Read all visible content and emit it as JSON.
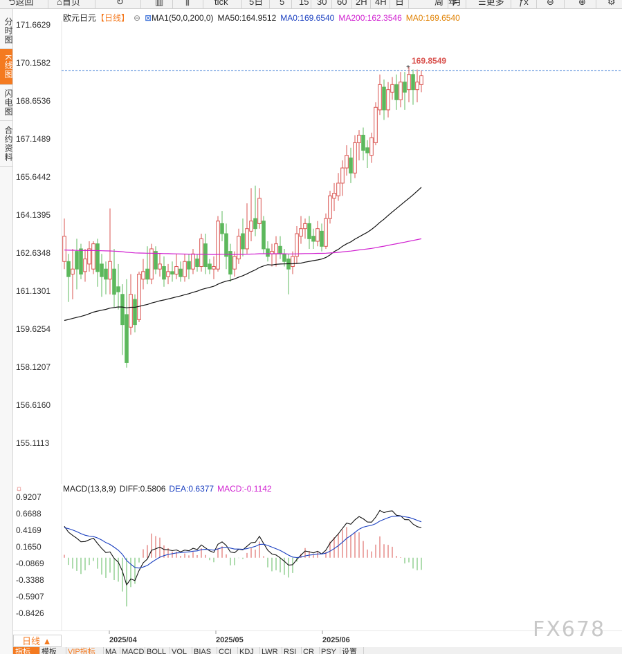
{
  "toolbar": {
    "back": "返回",
    "home": "首页",
    "tick": "tick",
    "day5": "5日",
    "p5": "5",
    "p15": "15",
    "p30": "30",
    "p60": "60",
    "p2h": "2H",
    "p4h": "4H",
    "day": "日",
    "week": "周",
    "month": "月",
    "year": "年",
    "more": "更多"
  },
  "side_tabs": [
    "分时图",
    "K线图",
    "闪电图",
    "合约资料"
  ],
  "legend": {
    "symbol": "欧元日元",
    "period": "【日线】",
    "ma_set": "MA1(50,0,200,0)",
    "ma50": "MA50:164.9512",
    "ma0a": "MA0:169.6540",
    "ma200": "MA200:162.3546",
    "ma0b": "MA0:169.6540"
  },
  "price_axis": [
    "171.6629",
    "170.1582",
    "168.6536",
    "167.1489",
    "165.6442",
    "164.1395",
    "162.6348",
    "161.1301",
    "159.6254",
    "158.1207",
    "156.6160",
    "155.1113"
  ],
  "last_price_label": "169.8549",
  "macd_legend": {
    "name": "MACD(13,8,9)",
    "diff": "DIFF:0.5806",
    "dea": "DEA:0.6377",
    "macd": "MACD:-0.1142"
  },
  "macd_axis": [
    "0.9207",
    "0.6688",
    "0.4169",
    "0.1650",
    "-0.0869",
    "-0.3388",
    "-0.5907",
    "-0.8426"
  ],
  "date_labels": [
    "2025/04",
    "2025/05",
    "2025/06"
  ],
  "day_selector": "日线 ▲",
  "bottom_tabs": [
    "指标",
    "模板",
    "VIP指标",
    "MA",
    "MACD",
    "BOLL",
    "VOL",
    "BIAS",
    "CCI",
    "KDJ",
    "LWR",
    "RSI",
    "CR",
    "PSY",
    "设置"
  ],
  "watermark": "FX678",
  "colors": {
    "up": "#d9534f",
    "down": "#5cb85c",
    "ma50": "#111111",
    "ma200": "#d020d0",
    "accent": "#f47a20"
  },
  "chart_data": {
    "type": "candlestick",
    "title": "欧元日元 日线",
    "ylim": [
      155.1113,
      171.6629
    ],
    "last_price": 169.8549,
    "candles": [
      {
        "o": 162.3,
        "c": 163.3,
        "h": 164.0,
        "l": 162.0
      },
      {
        "o": 162.3,
        "c": 161.7,
        "h": 162.6,
        "l": 160.7
      },
      {
        "o": 161.8,
        "c": 162.0,
        "h": 162.8,
        "l": 160.8
      },
      {
        "o": 162.7,
        "c": 162.0,
        "h": 163.2,
        "l": 161.2
      },
      {
        "o": 162.8,
        "c": 161.8,
        "h": 163.0,
        "l": 161.6
      },
      {
        "o": 161.9,
        "c": 162.4,
        "h": 162.8,
        "l": 161.5
      },
      {
        "o": 162.2,
        "c": 162.8,
        "h": 163.1,
        "l": 161.9
      },
      {
        "o": 162.0,
        "c": 163.0,
        "h": 163.1,
        "l": 161.8
      },
      {
        "o": 163.0,
        "c": 161.9,
        "h": 163.2,
        "l": 161.3
      },
      {
        "o": 162.2,
        "c": 161.7,
        "h": 162.6,
        "l": 160.9
      },
      {
        "o": 162.0,
        "c": 161.6,
        "h": 162.3,
        "l": 161.0
      },
      {
        "o": 161.6,
        "c": 162.3,
        "h": 164.4,
        "l": 161.0
      },
      {
        "o": 162.0,
        "c": 161.0,
        "h": 162.8,
        "l": 160.5
      },
      {
        "o": 161.3,
        "c": 161.1,
        "h": 162.2,
        "l": 160.4
      },
      {
        "o": 161.0,
        "c": 159.8,
        "h": 161.4,
        "l": 158.6
      },
      {
        "o": 160.2,
        "c": 158.3,
        "h": 161.6,
        "l": 158.1
      },
      {
        "o": 159.7,
        "c": 161.0,
        "h": 161.8,
        "l": 159.4
      },
      {
        "o": 160.8,
        "c": 159.8,
        "h": 161.0,
        "l": 159.5
      },
      {
        "o": 160.0,
        "c": 161.8,
        "h": 161.9,
        "l": 159.9
      },
      {
        "o": 161.6,
        "c": 161.9,
        "h": 162.4,
        "l": 161.2
      },
      {
        "o": 162.0,
        "c": 161.6,
        "h": 162.9,
        "l": 161.4
      },
      {
        "o": 161.6,
        "c": 162.8,
        "h": 163.0,
        "l": 161.4
      },
      {
        "o": 162.7,
        "c": 162.0,
        "h": 162.9,
        "l": 161.8
      },
      {
        "o": 162.0,
        "c": 162.2,
        "h": 162.6,
        "l": 161.7
      },
      {
        "o": 162.1,
        "c": 161.6,
        "h": 162.5,
        "l": 161.3
      },
      {
        "o": 161.7,
        "c": 161.9,
        "h": 162.2,
        "l": 161.4
      },
      {
        "o": 161.9,
        "c": 161.8,
        "h": 162.3,
        "l": 161.5
      },
      {
        "o": 161.8,
        "c": 162.1,
        "h": 162.6,
        "l": 161.6
      },
      {
        "o": 162.0,
        "c": 161.7,
        "h": 162.3,
        "l": 161.5
      },
      {
        "o": 161.7,
        "c": 162.3,
        "h": 162.6,
        "l": 161.5
      },
      {
        "o": 162.3,
        "c": 162.0,
        "h": 162.6,
        "l": 161.6
      },
      {
        "o": 162.0,
        "c": 162.6,
        "h": 162.8,
        "l": 161.8
      },
      {
        "o": 162.4,
        "c": 162.1,
        "h": 162.6,
        "l": 161.9
      },
      {
        "o": 162.1,
        "c": 163.2,
        "h": 163.4,
        "l": 161.9
      },
      {
        "o": 163.0,
        "c": 162.1,
        "h": 163.4,
        "l": 161.8
      },
      {
        "o": 162.2,
        "c": 162.0,
        "h": 162.4,
        "l": 161.8
      },
      {
        "o": 162.0,
        "c": 162.1,
        "h": 162.5,
        "l": 161.6
      },
      {
        "o": 162.0,
        "c": 163.9,
        "h": 164.1,
        "l": 161.9
      },
      {
        "o": 163.8,
        "c": 163.4,
        "h": 164.3,
        "l": 163.1
      },
      {
        "o": 163.4,
        "c": 162.5,
        "h": 163.8,
        "l": 162.0
      },
      {
        "o": 162.7,
        "c": 161.8,
        "h": 163.0,
        "l": 161.5
      },
      {
        "o": 162.0,
        "c": 162.5,
        "h": 162.7,
        "l": 161.7
      },
      {
        "o": 162.4,
        "c": 163.3,
        "h": 163.6,
        "l": 162.2
      },
      {
        "o": 163.4,
        "c": 162.8,
        "h": 164.0,
        "l": 162.5
      },
      {
        "o": 162.8,
        "c": 163.6,
        "h": 164.6,
        "l": 162.6
      },
      {
        "o": 163.5,
        "c": 163.9,
        "h": 165.2,
        "l": 163.1
      },
      {
        "o": 164.0,
        "c": 163.6,
        "h": 165.3,
        "l": 163.3
      },
      {
        "o": 163.8,
        "c": 164.8,
        "h": 165.2,
        "l": 163.6
      },
      {
        "o": 163.9,
        "c": 162.8,
        "h": 164.1,
        "l": 162.6
      },
      {
        "o": 162.8,
        "c": 162.5,
        "h": 163.1,
        "l": 162.3
      },
      {
        "o": 162.6,
        "c": 162.7,
        "h": 163.0,
        "l": 162.1
      },
      {
        "o": 162.6,
        "c": 163.0,
        "h": 163.3,
        "l": 162.1
      },
      {
        "o": 162.9,
        "c": 162.6,
        "h": 163.3,
        "l": 162.4
      },
      {
        "o": 162.6,
        "c": 162.3,
        "h": 162.8,
        "l": 162.1
      },
      {
        "o": 162.4,
        "c": 162.0,
        "h": 162.6,
        "l": 161.0
      },
      {
        "o": 162.1,
        "c": 162.5,
        "h": 162.7,
        "l": 161.8
      },
      {
        "o": 162.5,
        "c": 163.4,
        "h": 163.7,
        "l": 162.2
      },
      {
        "o": 163.3,
        "c": 163.6,
        "h": 164.1,
        "l": 163.0
      },
      {
        "o": 163.6,
        "c": 163.8,
        "h": 164.0,
        "l": 163.2
      },
      {
        "o": 163.8,
        "c": 163.2,
        "h": 164.1,
        "l": 162.8
      },
      {
        "o": 163.3,
        "c": 163.1,
        "h": 163.6,
        "l": 162.8
      },
      {
        "o": 163.1,
        "c": 163.6,
        "h": 163.9,
        "l": 162.9
      },
      {
        "o": 163.5,
        "c": 162.9,
        "h": 163.8,
        "l": 162.7
      },
      {
        "o": 162.9,
        "c": 164.0,
        "h": 164.2,
        "l": 162.8
      },
      {
        "o": 164.0,
        "c": 164.9,
        "h": 165.1,
        "l": 163.8
      },
      {
        "o": 164.8,
        "c": 165.0,
        "h": 165.4,
        "l": 164.3
      },
      {
        "o": 164.9,
        "c": 165.4,
        "h": 165.8,
        "l": 164.7
      },
      {
        "o": 165.4,
        "c": 166.0,
        "h": 166.3,
        "l": 164.9
      },
      {
        "o": 166.0,
        "c": 166.5,
        "h": 166.9,
        "l": 165.7
      },
      {
        "o": 166.4,
        "c": 165.8,
        "h": 166.8,
        "l": 165.4
      },
      {
        "o": 165.8,
        "c": 167.0,
        "h": 167.3,
        "l": 165.6
      },
      {
        "o": 167.0,
        "c": 167.3,
        "h": 167.5,
        "l": 166.3
      },
      {
        "o": 167.3,
        "c": 166.7,
        "h": 167.6,
        "l": 166.3
      },
      {
        "o": 166.8,
        "c": 166.6,
        "h": 167.1,
        "l": 166.0
      },
      {
        "o": 166.5,
        "c": 167.2,
        "h": 167.4,
        "l": 166.2
      },
      {
        "o": 167.0,
        "c": 168.4,
        "h": 168.6,
        "l": 166.9
      },
      {
        "o": 168.3,
        "c": 169.3,
        "h": 169.7,
        "l": 168.1
      },
      {
        "o": 169.2,
        "c": 168.3,
        "h": 169.5,
        "l": 167.9
      },
      {
        "o": 168.3,
        "c": 169.1,
        "h": 169.4,
        "l": 168.0
      },
      {
        "o": 169.0,
        "c": 169.3,
        "h": 169.6,
        "l": 168.7
      },
      {
        "o": 169.3,
        "c": 168.7,
        "h": 169.7,
        "l": 168.3
      },
      {
        "o": 168.7,
        "c": 169.4,
        "h": 169.8,
        "l": 168.4
      },
      {
        "o": 169.4,
        "c": 169.0,
        "h": 169.8,
        "l": 168.3
      },
      {
        "o": 169.1,
        "c": 169.7,
        "h": 170.0,
        "l": 168.6
      },
      {
        "o": 169.7,
        "c": 169.1,
        "h": 169.9,
        "l": 168.5
      },
      {
        "o": 169.1,
        "c": 169.4,
        "h": 169.9,
        "l": 168.6
      },
      {
        "o": 169.3,
        "c": 169.65,
        "h": 169.86,
        "l": 169.0
      }
    ]
  }
}
